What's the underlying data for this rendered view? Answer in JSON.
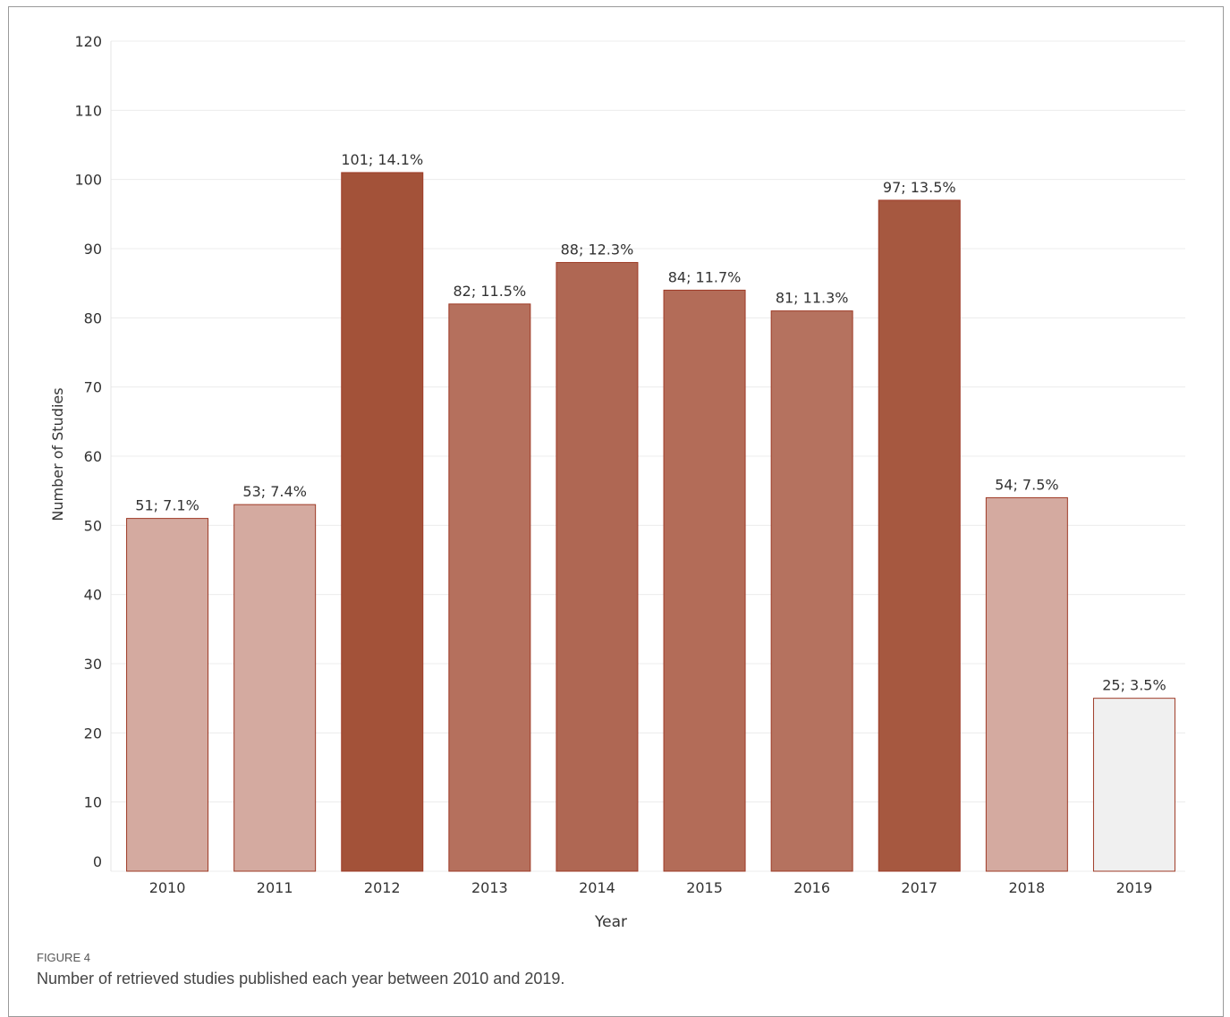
{
  "chart_data": {
    "type": "bar",
    "categories": [
      "2010",
      "2011",
      "2012",
      "2013",
      "2014",
      "2015",
      "2016",
      "2017",
      "2018",
      "2019"
    ],
    "values": [
      51,
      53,
      101,
      82,
      88,
      84,
      81,
      97,
      54,
      25
    ],
    "data_labels": [
      "51; 7.1%",
      "53; 7.4%",
      "101; 14.1%",
      "82; 11.5%",
      "88; 12.3%",
      "84; 11.7%",
      "81; 11.3%",
      "97; 13.5%",
      "54; 7.5%",
      "25; 3.5%"
    ],
    "bar_colors": [
      "#d4aaa0",
      "#d4aaa0",
      "#a35239",
      "#b5705d",
      "#af6753",
      "#b36c58",
      "#b5725f",
      "#a65840",
      "#d4aaa0",
      "#f0f0f0"
    ],
    "bar_outline": "#9e3a26",
    "xlabel": "Year",
    "ylabel": "Number of Studies",
    "ylim": [
      0,
      120
    ],
    "yticks": [
      0,
      10,
      20,
      30,
      40,
      50,
      60,
      70,
      80,
      90,
      100,
      110,
      120
    ],
    "grid": true,
    "legend": "none"
  },
  "caption": {
    "label": "FIGURE 4",
    "text": "Number of retrieved studies published each year between 2010 and 2019."
  }
}
